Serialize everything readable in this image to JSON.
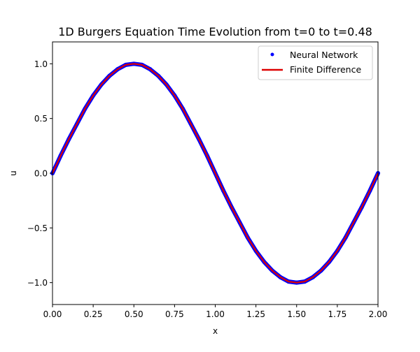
{
  "chart_data": {
    "type": "line",
    "title": "1D Burgers Equation Time Evolution from t=0 to t=0.48",
    "xlabel": "x",
    "ylabel": "u",
    "xlim": [
      0.0,
      2.0
    ],
    "ylim": [
      -1.2,
      1.2
    ],
    "xticks": [
      0.0,
      0.25,
      0.5,
      0.75,
      1.0,
      1.25,
      1.5,
      1.75,
      2.0
    ],
    "xtick_labels": [
      "0.00",
      "0.25",
      "0.50",
      "0.75",
      "1.00",
      "1.25",
      "1.50",
      "1.75",
      "2.00"
    ],
    "yticks": [
      -1.0,
      -0.5,
      0.0,
      0.5,
      1.0
    ],
    "ytick_labels": [
      "−1.0",
      "−0.5",
      "0.0",
      "0.5",
      "1.0"
    ],
    "grid": false,
    "legend_position": "top-right",
    "series": [
      {
        "name": "Neural Network",
        "style": "points",
        "color": "#0000ff",
        "x": [
          0.0,
          0.05,
          0.1,
          0.15,
          0.2,
          0.25,
          0.3,
          0.35,
          0.4,
          0.45,
          0.5,
          0.55,
          0.6,
          0.65,
          0.7,
          0.75,
          0.8,
          0.85,
          0.9,
          0.95,
          1.0,
          1.05,
          1.1,
          1.15,
          1.2,
          1.25,
          1.3,
          1.35,
          1.4,
          1.45,
          1.5,
          1.55,
          1.6,
          1.65,
          1.7,
          1.75,
          1.8,
          1.85,
          1.9,
          1.95,
          2.0
        ],
        "y": [
          0.0,
          0.16,
          0.31,
          0.45,
          0.59,
          0.71,
          0.81,
          0.89,
          0.95,
          0.99,
          1.0,
          0.99,
          0.95,
          0.89,
          0.81,
          0.71,
          0.59,
          0.45,
          0.31,
          0.16,
          0.0,
          -0.16,
          -0.31,
          -0.45,
          -0.59,
          -0.71,
          -0.81,
          -0.89,
          -0.95,
          -0.99,
          -1.0,
          -0.99,
          -0.95,
          -0.89,
          -0.81,
          -0.71,
          -0.59,
          -0.45,
          -0.31,
          -0.16,
          0.0
        ]
      },
      {
        "name": "Finite Difference",
        "style": "line",
        "color": "#dd0000",
        "x": [
          0.0,
          0.05,
          0.1,
          0.15,
          0.2,
          0.25,
          0.3,
          0.35,
          0.4,
          0.45,
          0.5,
          0.55,
          0.6,
          0.65,
          0.7,
          0.75,
          0.8,
          0.85,
          0.9,
          0.95,
          1.0,
          1.05,
          1.1,
          1.15,
          1.2,
          1.25,
          1.3,
          1.35,
          1.4,
          1.45,
          1.5,
          1.55,
          1.6,
          1.65,
          1.7,
          1.75,
          1.8,
          1.85,
          1.9,
          1.95,
          2.0
        ],
        "y": [
          0.0,
          0.16,
          0.31,
          0.45,
          0.59,
          0.71,
          0.81,
          0.89,
          0.95,
          0.99,
          1.0,
          0.99,
          0.95,
          0.89,
          0.81,
          0.71,
          0.59,
          0.45,
          0.31,
          0.16,
          0.0,
          -0.16,
          -0.31,
          -0.45,
          -0.59,
          -0.71,
          -0.81,
          -0.89,
          -0.95,
          -0.99,
          -1.0,
          -0.99,
          -0.95,
          -0.89,
          -0.81,
          -0.71,
          -0.59,
          -0.45,
          -0.31,
          -0.16,
          0.0
        ]
      }
    ]
  }
}
